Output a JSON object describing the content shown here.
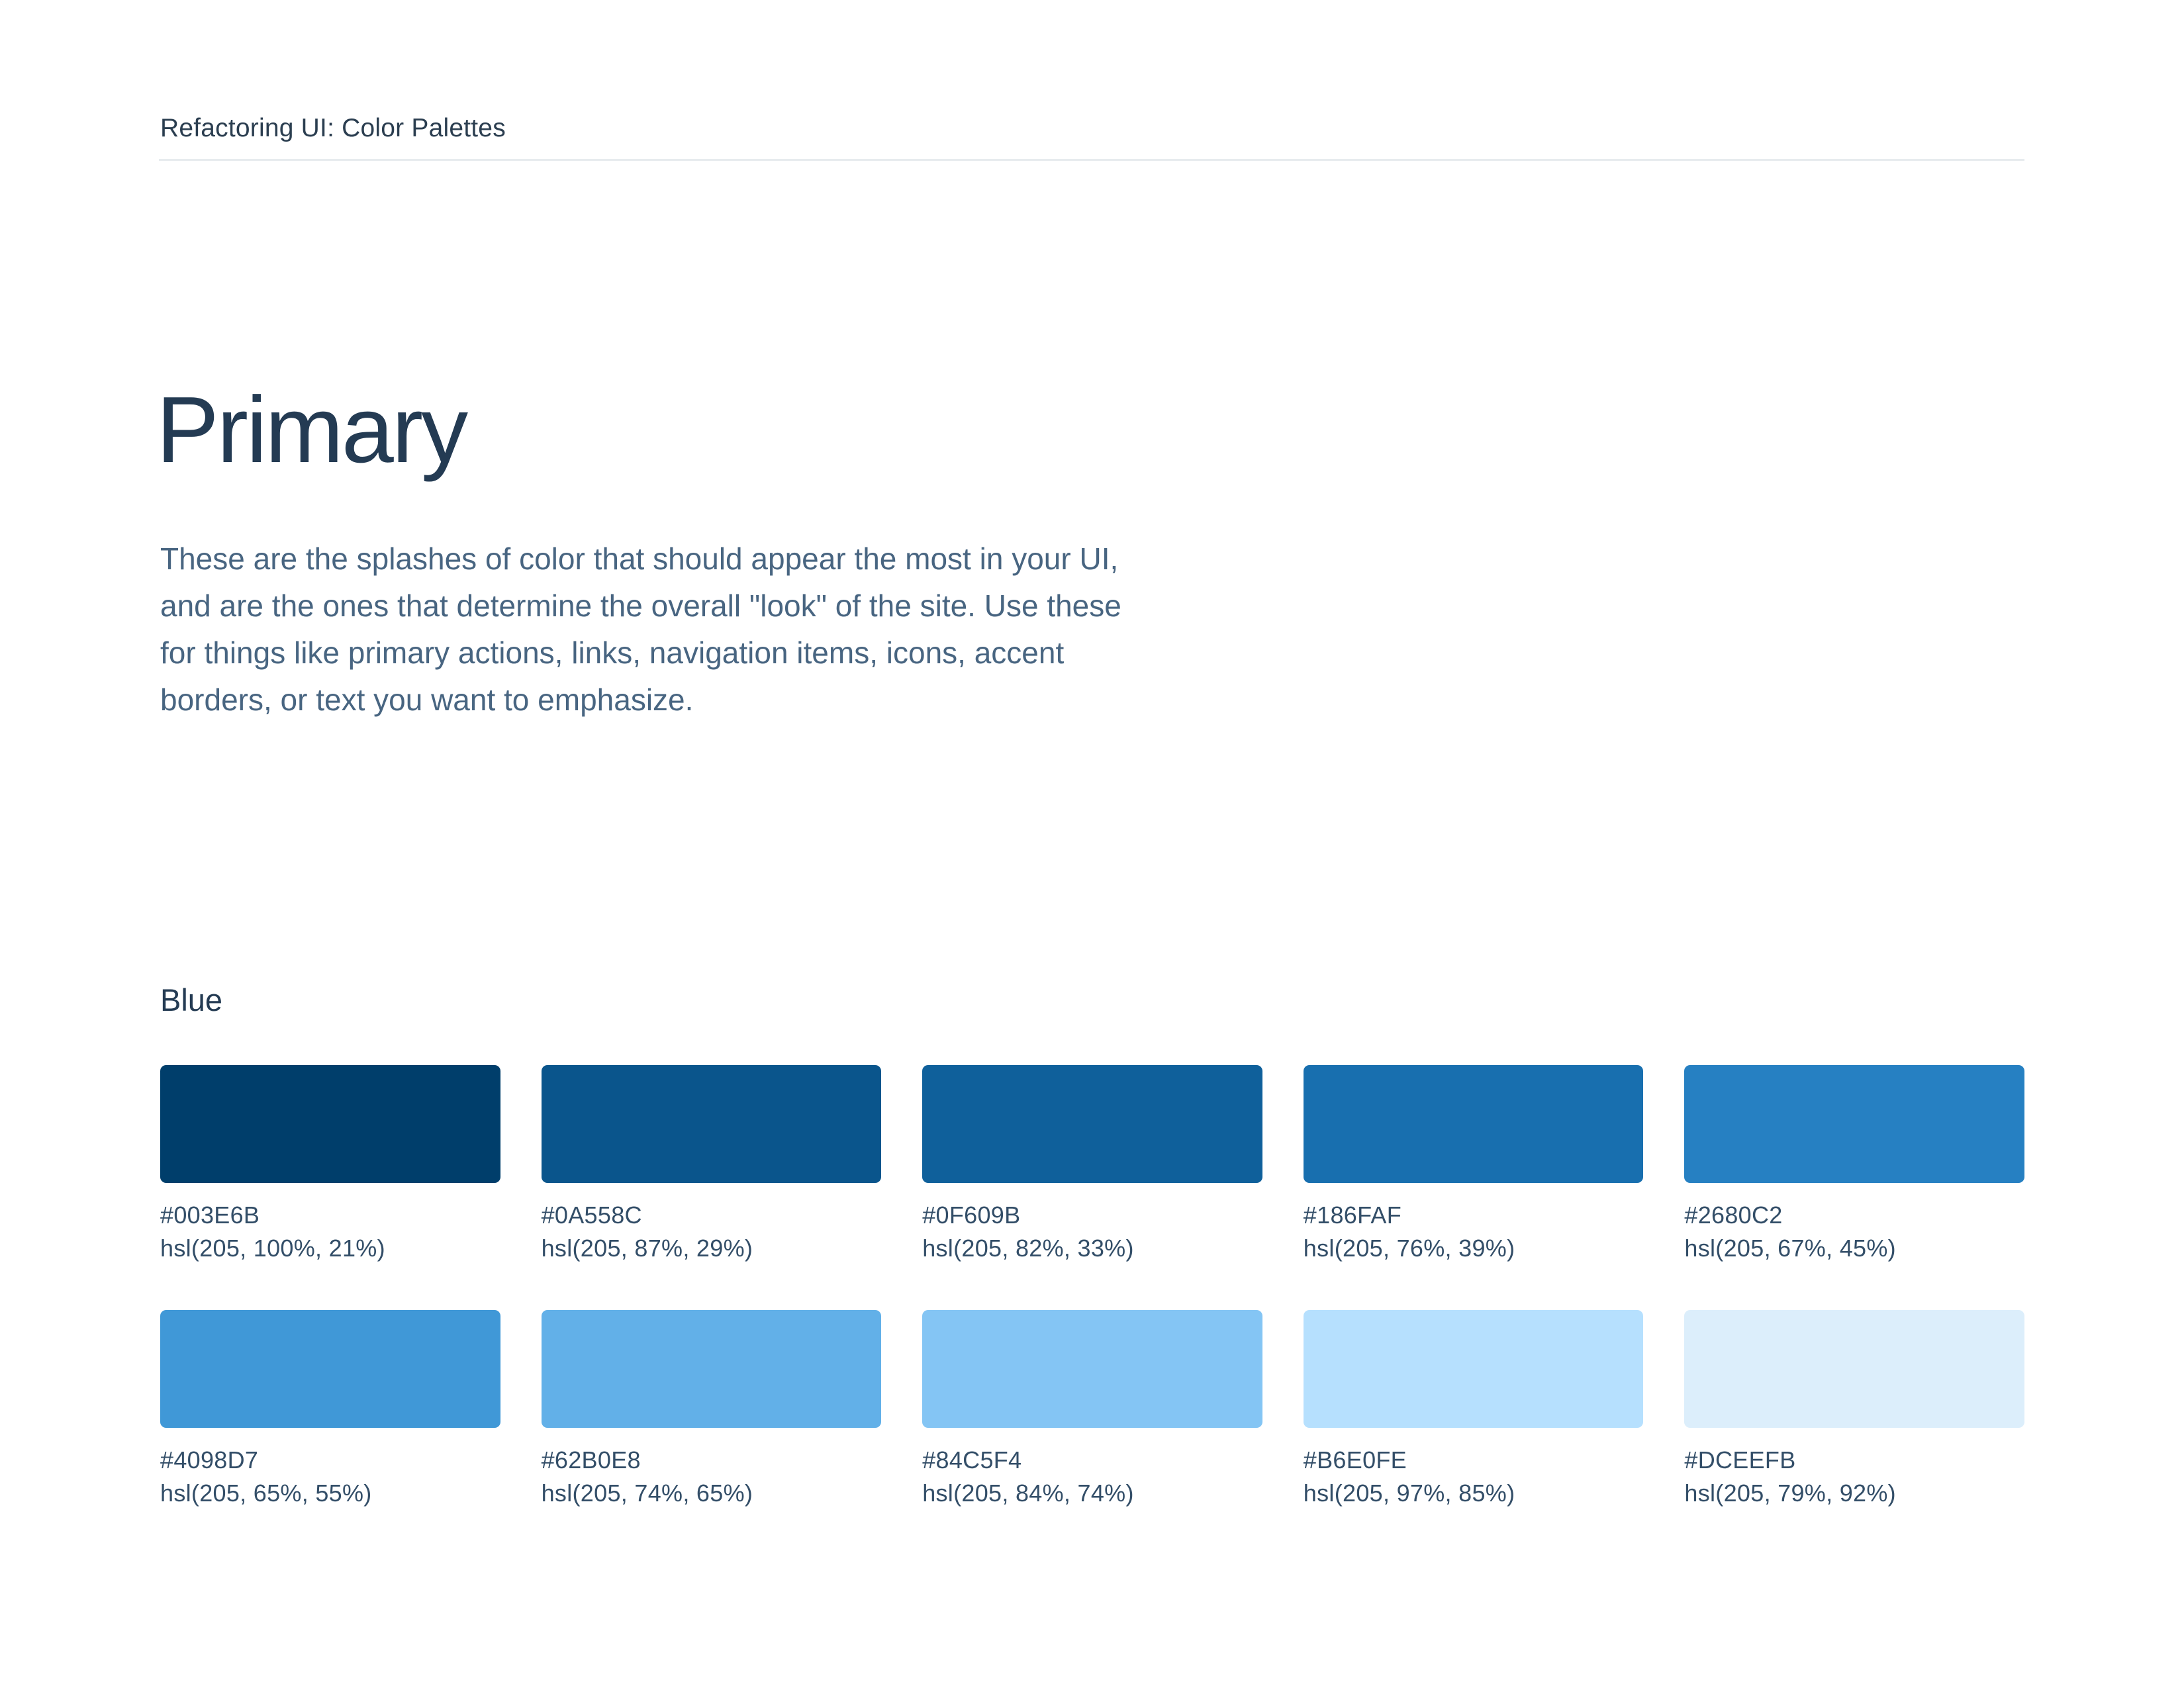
{
  "header": {
    "title": "Refactoring UI: Color Palettes"
  },
  "section": {
    "title": "Primary",
    "description_lines": [
      "These are the splashes of color that should appear the most in your UI,",
      "and are the ones that determine the overall \"look\" of the site. Use these",
      "for things like primary actions, links, navigation items, icons, accent",
      "borders, or text you want to emphasize."
    ]
  },
  "palette": {
    "name": "Blue",
    "swatches": [
      {
        "hex": "#003E6B",
        "hsl": "hsl(205, 100%, 21%)"
      },
      {
        "hex": "#0A558C",
        "hsl": "hsl(205, 87%, 29%)"
      },
      {
        "hex": "#0F609B",
        "hsl": "hsl(205, 82%, 33%)"
      },
      {
        "hex": "#186FAF",
        "hsl": "hsl(205, 76%, 39%)"
      },
      {
        "hex": "#2680C2",
        "hsl": "hsl(205, 67%, 45%)"
      },
      {
        "hex": "#4098D7",
        "hsl": "hsl(205, 65%, 55%)"
      },
      {
        "hex": "#62B0E8",
        "hsl": "hsl(205, 74%, 65%)"
      },
      {
        "hex": "#84C5F4",
        "hsl": "hsl(205, 84%, 74%)"
      },
      {
        "hex": "#B6E0FE",
        "hsl": "hsl(205, 97%, 85%)"
      },
      {
        "hex": "#DCEEFB",
        "hsl": "hsl(205, 79%, 92%)"
      }
    ]
  },
  "colors": {
    "background": "#FFFFFF",
    "heading": "#243B53",
    "body_text": "#486581",
    "label_text": "#334E68",
    "divider": "#E7EBEE"
  }
}
